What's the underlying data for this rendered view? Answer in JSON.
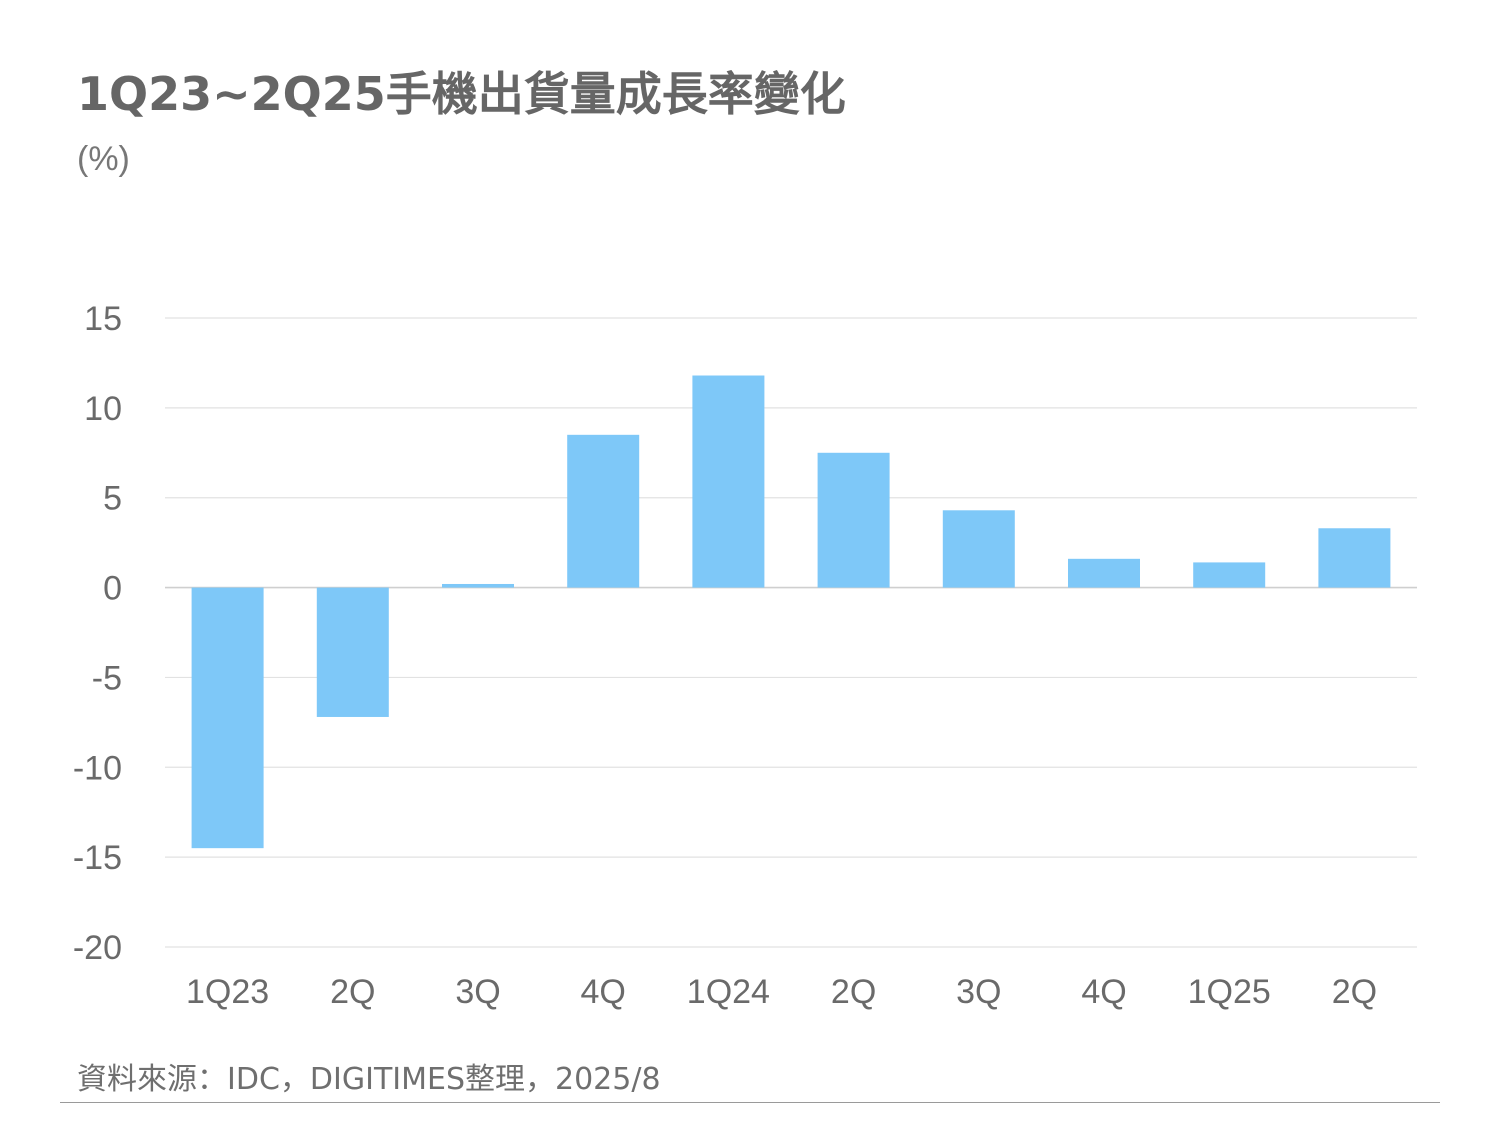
{
  "chart_data": {
    "type": "bar",
    "title": "1Q23~2Q25手機出貨量成長率變化",
    "ylabel": "(%)",
    "categories": [
      "1Q23",
      "2Q",
      "3Q",
      "4Q",
      "1Q24",
      "2Q",
      "3Q",
      "4Q",
      "1Q25",
      "2Q"
    ],
    "values": [
      -14.5,
      -7.2,
      0.2,
      8.5,
      11.8,
      7.5,
      4.3,
      1.6,
      1.4,
      3.3
    ],
    "ylim": [
      -20,
      15
    ],
    "yticks": [
      15,
      10,
      5,
      0,
      -5,
      -10,
      -15,
      -20
    ],
    "grid": true,
    "bar_color": "#7ec8f8"
  },
  "source": "資料來源：IDC，DIGITIMES整理，2025/8"
}
